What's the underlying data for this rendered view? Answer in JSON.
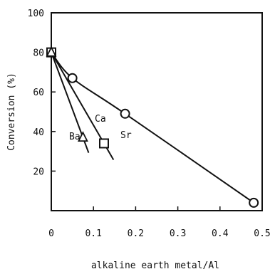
{
  "chart_data": {
    "type": "scatter",
    "xlabel": "alkaline earth metal/Al",
    "ylabel": "Conversion (%)",
    "xlim": [
      0,
      0.5
    ],
    "ylim": [
      0,
      100
    ],
    "x_ticks": [
      {
        "value": 0,
        "label": "0"
      },
      {
        "value": 0.1,
        "label": "0.1"
      },
      {
        "value": 0.2,
        "label": "0.2"
      },
      {
        "value": 0.3,
        "label": "0.3"
      },
      {
        "value": 0.4,
        "label": "0.4"
      },
      {
        "value": 0.5,
        "label": "0.5"
      }
    ],
    "y_ticks": [
      {
        "value": 20,
        "label": "20"
      },
      {
        "value": 40,
        "label": "40"
      },
      {
        "value": 60,
        "label": "60"
      },
      {
        "value": 80,
        "label": "80"
      },
      {
        "value": 100,
        "label": "100"
      }
    ],
    "grid": false,
    "legend": "none",
    "series": [
      {
        "name": "Ca",
        "marker": "circle",
        "points": [
          {
            "x": 0.0,
            "y": 80
          },
          {
            "x": 0.05,
            "y": 67
          },
          {
            "x": 0.175,
            "y": 49
          },
          {
            "x": 0.48,
            "y": 4
          }
        ]
      },
      {
        "name": "Sr",
        "marker": "square",
        "points": [
          {
            "x": 0.0,
            "y": 80
          },
          {
            "x": 0.125,
            "y": 34
          }
        ]
      },
      {
        "name": "Ba",
        "marker": "triangle",
        "points": [
          {
            "x": 0.0,
            "y": 80
          },
          {
            "x": 0.075,
            "y": 37
          }
        ]
      }
    ]
  }
}
